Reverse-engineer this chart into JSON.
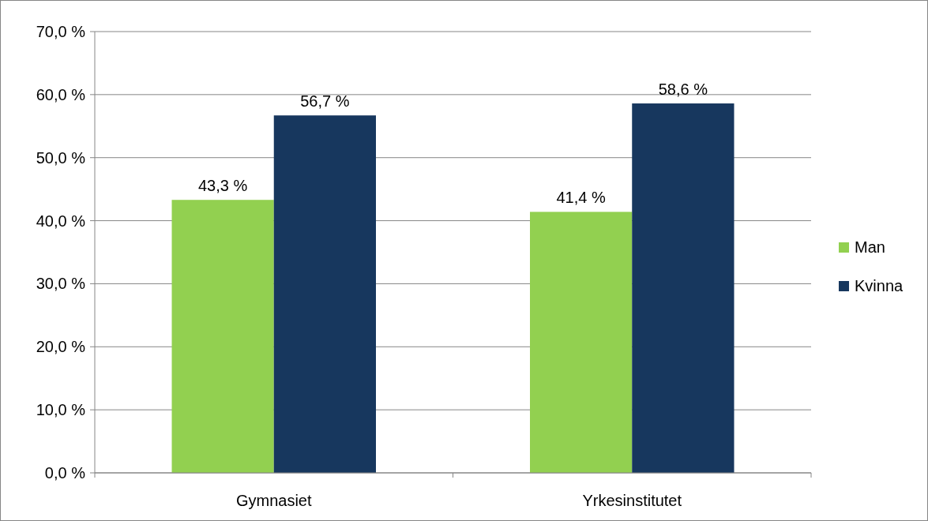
{
  "chart_data": {
    "type": "bar",
    "categories": [
      "Gymnasiet",
      "Yrkesinstitutet"
    ],
    "series": [
      {
        "name": "Man",
        "color": "#92d050",
        "values": [
          43.3,
          41.4
        ],
        "value_labels": [
          "43,3 %",
          "41,4 %"
        ]
      },
      {
        "name": "Kvinna",
        "color": "#17375e",
        "values": [
          56.7,
          58.6
        ],
        "value_labels": [
          "56,7 %",
          "58,6 %"
        ]
      }
    ],
    "ylim": [
      0,
      70
    ],
    "yticks": [
      {
        "value": 0,
        "label": "0,0 %"
      },
      {
        "value": 10,
        "label": "10,0 %"
      },
      {
        "value": 20,
        "label": "20,0 %"
      },
      {
        "value": 30,
        "label": "30,0 %"
      },
      {
        "value": 40,
        "label": "40,0 %"
      },
      {
        "value": 50,
        "label": "50,0 %"
      },
      {
        "value": 60,
        "label": "60,0 %"
      },
      {
        "value": 70,
        "label": "70,0 %"
      }
    ],
    "grid": "y",
    "legend": "right"
  }
}
